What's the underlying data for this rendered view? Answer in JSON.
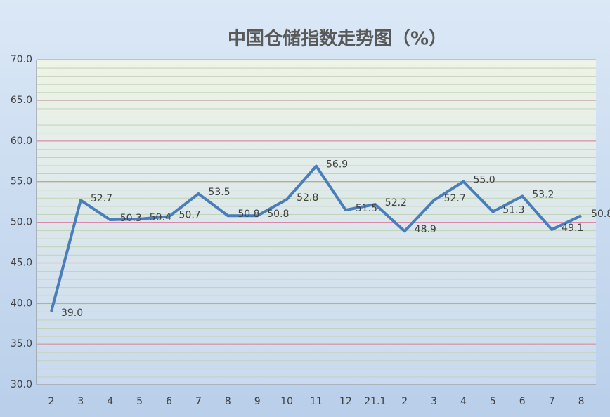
{
  "chart_data": {
    "type": "line",
    "title": "中国仓储指数走势图（%）",
    "categories": [
      "2",
      "3",
      "4",
      "5",
      "6",
      "7",
      "8",
      "9",
      "10",
      "11",
      "12",
      "21.1",
      "2",
      "3",
      "4",
      "5",
      "6",
      "7",
      "8"
    ],
    "series": [
      {
        "name": "中国仓储指数",
        "color": "#4a7ebb",
        "values": [
          39.0,
          52.7,
          50.3,
          50.4,
          50.7,
          53.5,
          50.8,
          50.8,
          52.8,
          56.9,
          51.5,
          52.2,
          48.9,
          52.7,
          55.0,
          51.3,
          53.2,
          49.1,
          50.8
        ],
        "value_labels": [
          "39.0",
          "52.7",
          "50.3",
          "50.4",
          "50.7",
          "53.5",
          "50.8",
          "50.8",
          "52.8",
          "56.9",
          "51.5",
          "52.2",
          "48.9",
          "52.7",
          "55.0",
          "51.3",
          "53.2",
          "49.1",
          "50.8"
        ]
      }
    ],
    "ylim": [
      30,
      70
    ],
    "yticks": [
      {
        "value": 30,
        "label": "30.0"
      },
      {
        "value": 35,
        "label": "35.0"
      },
      {
        "value": 40,
        "label": "40.0"
      },
      {
        "value": 45,
        "label": "45.0"
      },
      {
        "value": 50,
        "label": "50.0"
      },
      {
        "value": 55,
        "label": "55.0"
      },
      {
        "value": 60,
        "label": "60.0"
      },
      {
        "value": 65,
        "label": "65.0"
      },
      {
        "value": 70,
        "label": "70.0"
      }
    ],
    "grid": true
  }
}
